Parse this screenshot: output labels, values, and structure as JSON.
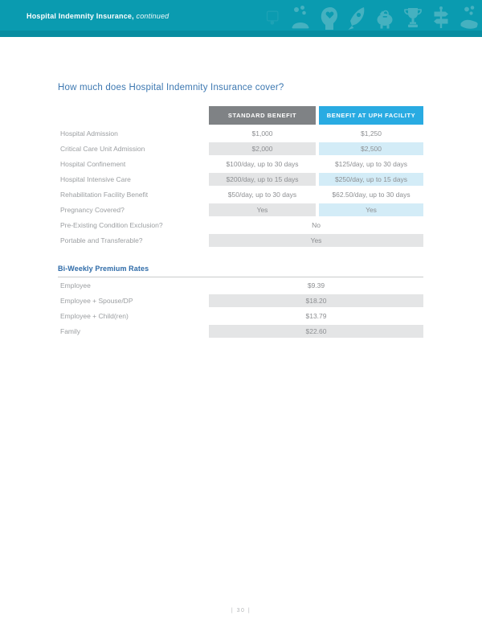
{
  "header": {
    "title": "Hospital Indemnity Insurance,",
    "title_suffix": " continued",
    "bg_color": "#0a9bb0",
    "icons": [
      "certificate-icon",
      "coins-icon",
      "head-heart-icon",
      "rocket-icon",
      "piggy-bank-icon",
      "trophy-icon",
      "signpost-icon",
      "hand-coins-icon"
    ]
  },
  "main": {
    "question_title": "How much does Hospital Indemnity Insurance cover?",
    "benefits_table": {
      "columns": [
        "STANDARD BENEFIT",
        "BENEFIT AT UPH FACILITY"
      ],
      "rows": [
        {
          "label": "Hospital Admission",
          "standard": "$1,000",
          "uph": "$1,250",
          "shaded": false
        },
        {
          "label": "Critical Care Unit Admission",
          "standard": "$2,000",
          "uph": "$2,500",
          "shaded": true
        },
        {
          "label": "Hospital Confinement",
          "standard": "$100/day, up to 30 days",
          "uph": "$125/day, up to 30 days",
          "shaded": false
        },
        {
          "label": "Hospital Intensive Care",
          "standard": "$200/day, up to 15 days",
          "uph": "$250/day, up to 15 days",
          "shaded": true
        },
        {
          "label": "Rehabilitation Facility Benefit",
          "standard": "$50/day, up to 30 days",
          "uph": "$62.50/day, up to 30 days",
          "shaded": false
        },
        {
          "label": "Pregnancy Covered?",
          "standard": "Yes",
          "uph": "Yes",
          "shaded": true
        },
        {
          "label": "Pre-Existing Condition Exclusion?",
          "merged": "No",
          "shaded": false
        },
        {
          "label": "Portable and Transferable?",
          "merged": "Yes",
          "shaded": true
        }
      ]
    },
    "premium_rates": {
      "heading": "Bi-Weekly Premium Rates",
      "rows": [
        {
          "label": "Employee",
          "value": "$9.39",
          "shaded": false
        },
        {
          "label": "Employee + Spouse/DP",
          "value": "$18.20",
          "shaded": true
        },
        {
          "label": "Employee + Child(ren)",
          "value": "$13.79",
          "shaded": false
        },
        {
          "label": "Family",
          "value": "$22.60",
          "shaded": true
        }
      ]
    }
  },
  "footer": {
    "page_number": "| 30 |"
  },
  "colors": {
    "banner_teal": "#0a9bb0",
    "standard_header_bg": "#7f8285",
    "uph_header_bg": "#29abe2",
    "shade_gray": "#e4e5e6",
    "shade_blue": "#d3ecf7",
    "title_blue": "#3d78b1",
    "premium_heading_blue": "#2e6ba8",
    "label_gray": "#9b9ea1",
    "value_gray": "#8d8f92"
  }
}
